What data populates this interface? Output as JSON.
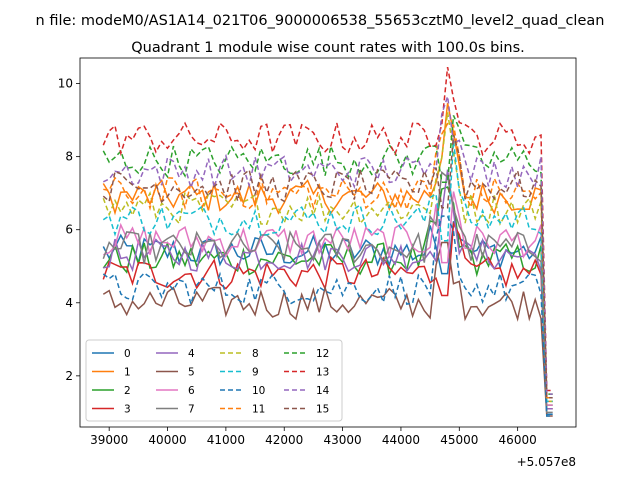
{
  "suptitle": "n file: modeM0/AS1A14_021T06_9000006538_55653cztM0_level2_quad_clean",
  "chart_data": {
    "type": "line",
    "title": "Quadrant 1 module wise count rates with 100.0s bins.",
    "xlabel": "",
    "ylabel": "",
    "x_offset_label": "+5.057e8",
    "x_range": [
      38900,
      46600
    ],
    "x_step": 100,
    "xlim": [
      38500,
      47000
    ],
    "ylim": [
      0.6,
      10.7
    ],
    "xticks": [
      39000,
      40000,
      41000,
      42000,
      43000,
      44000,
      45000,
      46000
    ],
    "yticks": [
      2,
      4,
      6,
      8,
      10
    ],
    "grid": false,
    "legend": {
      "location": "lower-left",
      "columns": 4
    },
    "series": [
      {
        "name": "0",
        "color": "#1f77b4",
        "dash": "solid",
        "base": 5.4,
        "spike": 7.2,
        "end": 0.95
      },
      {
        "name": "1",
        "color": "#ff7f0e",
        "dash": "solid",
        "base": 6.9,
        "spike": 8.8,
        "end": 1.3
      },
      {
        "name": "2",
        "color": "#2ca02c",
        "dash": "solid",
        "base": 5.2,
        "spike": 7.0,
        "end": 1.2
      },
      {
        "name": "3",
        "color": "#d62728",
        "dash": "solid",
        "base": 4.8,
        "spike": 6.4,
        "end": 1.1
      },
      {
        "name": "4",
        "color": "#9467bd",
        "dash": "solid",
        "base": 5.3,
        "spike": 7.1,
        "end": 1.1
      },
      {
        "name": "5",
        "color": "#8c564b",
        "dash": "solid",
        "base": 4.0,
        "spike": 5.4,
        "end": 0.9
      },
      {
        "name": "6",
        "color": "#e377c2",
        "dash": "solid",
        "base": 5.7,
        "spike": 7.6,
        "end": 1.2
      },
      {
        "name": "7",
        "color": "#7f7f7f",
        "dash": "solid",
        "base": 5.5,
        "spike": 7.4,
        "end": 1.0
      },
      {
        "name": "8",
        "color": "#bcbd22",
        "dash": "dashed",
        "base": 6.6,
        "spike": 8.6,
        "end": 1.3
      },
      {
        "name": "9",
        "color": "#17becf",
        "dash": "dashed",
        "base": 6.3,
        "spike": 8.4,
        "end": 1.3
      },
      {
        "name": "10",
        "color": "#1f77b4",
        "dash": "dashed",
        "base": 4.4,
        "spike": 5.8,
        "end": 0.9
      },
      {
        "name": "11",
        "color": "#ff7f0e",
        "dash": "dashed",
        "base": 7.0,
        "spike": 9.0,
        "end": 1.4
      },
      {
        "name": "12",
        "color": "#2ca02c",
        "dash": "dashed",
        "base": 7.9,
        "spike": 9.6,
        "end": 1.5
      },
      {
        "name": "13",
        "color": "#d62728",
        "dash": "dashed",
        "base": 8.5,
        "spike": 10.2,
        "end": 1.6
      },
      {
        "name": "14",
        "color": "#9467bd",
        "dash": "dashed",
        "base": 7.6,
        "spike": 9.9,
        "end": 1.5
      },
      {
        "name": "15",
        "color": "#8c564b",
        "dash": "dashed",
        "base": 7.2,
        "spike": 9.2,
        "end": 1.4
      }
    ]
  }
}
